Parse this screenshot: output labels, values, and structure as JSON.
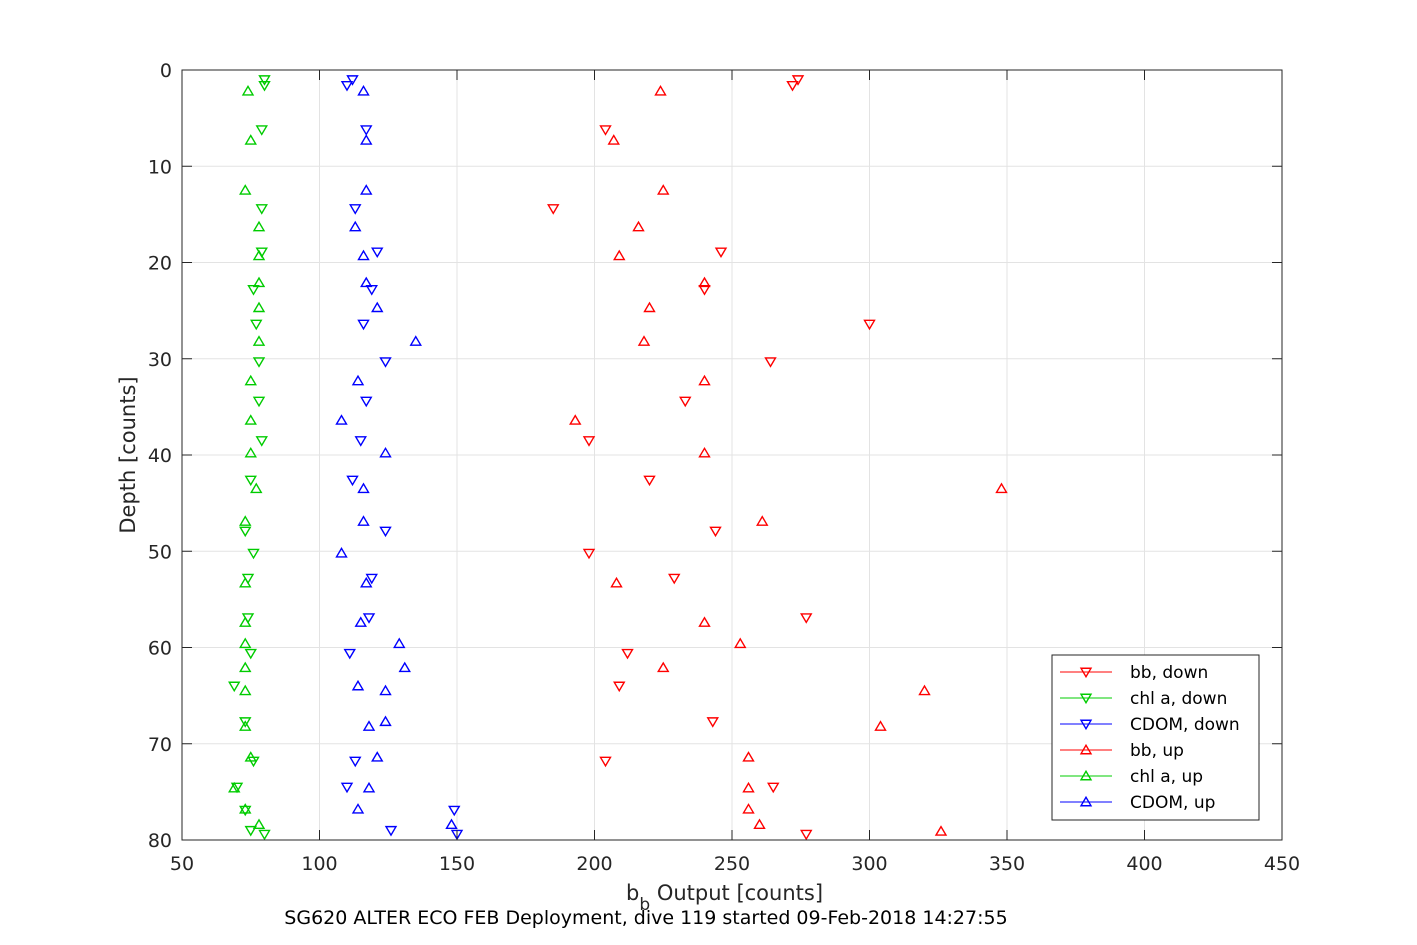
{
  "chart_data": {
    "type": "scatter",
    "xlabel_main": "b",
    "xlabel_sub": "b",
    "xlabel_rest": " Output [counts]",
    "ylabel": "Depth [counts]",
    "caption": "SG620 ALTER ECO FEB Deployment, dive 119 started 09-Feb-2018 14:27:55",
    "xlim": [
      50,
      450
    ],
    "ylim": [
      0,
      80
    ],
    "y_reversed": true,
    "grid": true,
    "legend_position": "bottom-right",
    "xticks": [
      50,
      100,
      150,
      200,
      250,
      300,
      350,
      400,
      450
    ],
    "yticks": [
      0,
      10,
      20,
      30,
      40,
      50,
      60,
      70,
      80
    ],
    "series": [
      {
        "name": "bb, down",
        "color": "#ff0000",
        "marker": "triangle-down",
        "points": [
          [
            274,
            1.0
          ],
          [
            272,
            1.6
          ],
          [
            204,
            6.2
          ],
          [
            185,
            14.4
          ],
          [
            246,
            18.9
          ],
          [
            240,
            22.8
          ],
          [
            300,
            26.4
          ],
          [
            264,
            30.3
          ],
          [
            233,
            34.4
          ],
          [
            198,
            38.5
          ],
          [
            220,
            42.6
          ],
          [
            244,
            47.9
          ],
          [
            198,
            50.2
          ],
          [
            229,
            52.8
          ],
          [
            277,
            56.9
          ],
          [
            212,
            60.6
          ],
          [
            209,
            64.0
          ],
          [
            243,
            67.7
          ],
          [
            204,
            71.8
          ],
          [
            265,
            74.5
          ],
          [
            277,
            79.4
          ]
        ]
      },
      {
        "name": "chl a, down",
        "color": "#00cc00",
        "marker": "triangle-down",
        "points": [
          [
            80,
            1.0
          ],
          [
            80,
            1.6
          ],
          [
            79,
            6.2
          ],
          [
            79,
            14.4
          ],
          [
            79,
            18.9
          ],
          [
            76,
            22.8
          ],
          [
            77,
            26.4
          ],
          [
            78,
            30.3
          ],
          [
            78,
            34.4
          ],
          [
            79,
            38.5
          ],
          [
            75,
            42.6
          ],
          [
            73,
            47.9
          ],
          [
            76,
            50.2
          ],
          [
            74,
            52.8
          ],
          [
            74,
            56.9
          ],
          [
            75,
            60.6
          ],
          [
            69,
            64.0
          ],
          [
            73,
            67.7
          ],
          [
            76,
            71.8
          ],
          [
            70,
            74.5
          ],
          [
            73,
            76.9
          ],
          [
            75,
            79.0
          ],
          [
            80,
            79.4
          ]
        ]
      },
      {
        "name": "CDOM, down",
        "color": "#0000ff",
        "marker": "triangle-down",
        "points": [
          [
            112,
            1.0
          ],
          [
            110,
            1.6
          ],
          [
            117,
            6.2
          ],
          [
            113,
            14.4
          ],
          [
            121,
            18.9
          ],
          [
            119,
            22.8
          ],
          [
            116,
            26.4
          ],
          [
            124,
            30.3
          ],
          [
            117,
            34.4
          ],
          [
            115,
            38.5
          ],
          [
            112,
            42.6
          ],
          [
            124,
            47.9
          ],
          [
            119,
            52.8
          ],
          [
            118,
            56.9
          ],
          [
            111,
            60.6
          ],
          [
            113,
            71.8
          ],
          [
            110,
            74.5
          ],
          [
            149,
            76.9
          ],
          [
            126,
            79.0
          ],
          [
            150,
            79.4
          ]
        ]
      },
      {
        "name": "bb, up",
        "color": "#ff0000",
        "marker": "triangle-up",
        "points": [
          [
            224,
            2.2
          ],
          [
            207,
            7.3
          ],
          [
            225,
            12.5
          ],
          [
            216,
            16.3
          ],
          [
            209,
            19.3
          ],
          [
            240,
            22.1
          ],
          [
            220,
            24.7
          ],
          [
            218,
            28.2
          ],
          [
            240,
            32.3
          ],
          [
            193,
            36.4
          ],
          [
            240,
            39.8
          ],
          [
            348,
            43.5
          ],
          [
            261,
            46.9
          ],
          [
            208,
            53.3
          ],
          [
            240,
            57.4
          ],
          [
            253,
            59.6
          ],
          [
            225,
            62.1
          ],
          [
            320,
            64.5
          ],
          [
            304,
            68.2
          ],
          [
            256,
            71.4
          ],
          [
            256,
            74.6
          ],
          [
            256,
            76.8
          ],
          [
            260,
            78.4
          ],
          [
            326,
            79.1
          ]
        ]
      },
      {
        "name": "chl a, up",
        "color": "#00cc00",
        "marker": "triangle-up",
        "points": [
          [
            74,
            2.2
          ],
          [
            75,
            7.3
          ],
          [
            73,
            12.5
          ],
          [
            78,
            16.3
          ],
          [
            78,
            19.3
          ],
          [
            78,
            22.1
          ],
          [
            78,
            24.7
          ],
          [
            78,
            28.2
          ],
          [
            75,
            32.3
          ],
          [
            75,
            36.4
          ],
          [
            75,
            39.8
          ],
          [
            77,
            43.5
          ],
          [
            73,
            46.9
          ],
          [
            73,
            53.3
          ],
          [
            73,
            57.4
          ],
          [
            73,
            59.6
          ],
          [
            73,
            62.1
          ],
          [
            73,
            64.5
          ],
          [
            73,
            68.2
          ],
          [
            75,
            71.4
          ],
          [
            69,
            74.6
          ],
          [
            73,
            76.8
          ],
          [
            78,
            78.4
          ]
        ]
      },
      {
        "name": "CDOM, up",
        "color": "#0000ff",
        "marker": "triangle-up",
        "points": [
          [
            116,
            2.2
          ],
          [
            117,
            7.3
          ],
          [
            117,
            12.5
          ],
          [
            113,
            16.3
          ],
          [
            116,
            19.3
          ],
          [
            117,
            22.1
          ],
          [
            121,
            24.7
          ],
          [
            135,
            28.2
          ],
          [
            114,
            32.3
          ],
          [
            108,
            36.4
          ],
          [
            124,
            39.8
          ],
          [
            116,
            43.5
          ],
          [
            116,
            46.9
          ],
          [
            108,
            50.2
          ],
          [
            117,
            53.3
          ],
          [
            115,
            57.4
          ],
          [
            129,
            59.6
          ],
          [
            131,
            62.1
          ],
          [
            114,
            64.0
          ],
          [
            124,
            64.5
          ],
          [
            124,
            67.7
          ],
          [
            118,
            68.2
          ],
          [
            121,
            71.4
          ],
          [
            118,
            74.6
          ],
          [
            114,
            76.8
          ],
          [
            148,
            78.4
          ]
        ]
      }
    ]
  }
}
